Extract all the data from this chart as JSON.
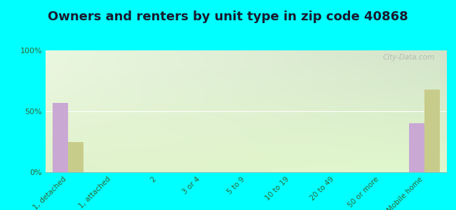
{
  "title": "Owners and renters by unit type in zip code 40868",
  "categories": [
    "1, detached",
    "1, attached",
    "2",
    "3 or 4",
    "5 to 9",
    "10 to 19",
    "20 to 49",
    "50 or more",
    "Mobile home"
  ],
  "owner_values": [
    57,
    0,
    0,
    0,
    0,
    0,
    0,
    0,
    40
  ],
  "renter_values": [
    25,
    0,
    0,
    0,
    0,
    0,
    0,
    0,
    68
  ],
  "owner_color": "#c9a8d4",
  "renter_color": "#c8cc8a",
  "outer_bg": "#00ffff",
  "ylim": [
    0,
    100
  ],
  "yticks": [
    0,
    50,
    100
  ],
  "ytick_labels": [
    "0%",
    "50%",
    "100%"
  ],
  "bar_width": 0.35,
  "watermark": "City-Data.com",
  "title_fontsize": 13,
  "title_color": "#1a1a2e"
}
